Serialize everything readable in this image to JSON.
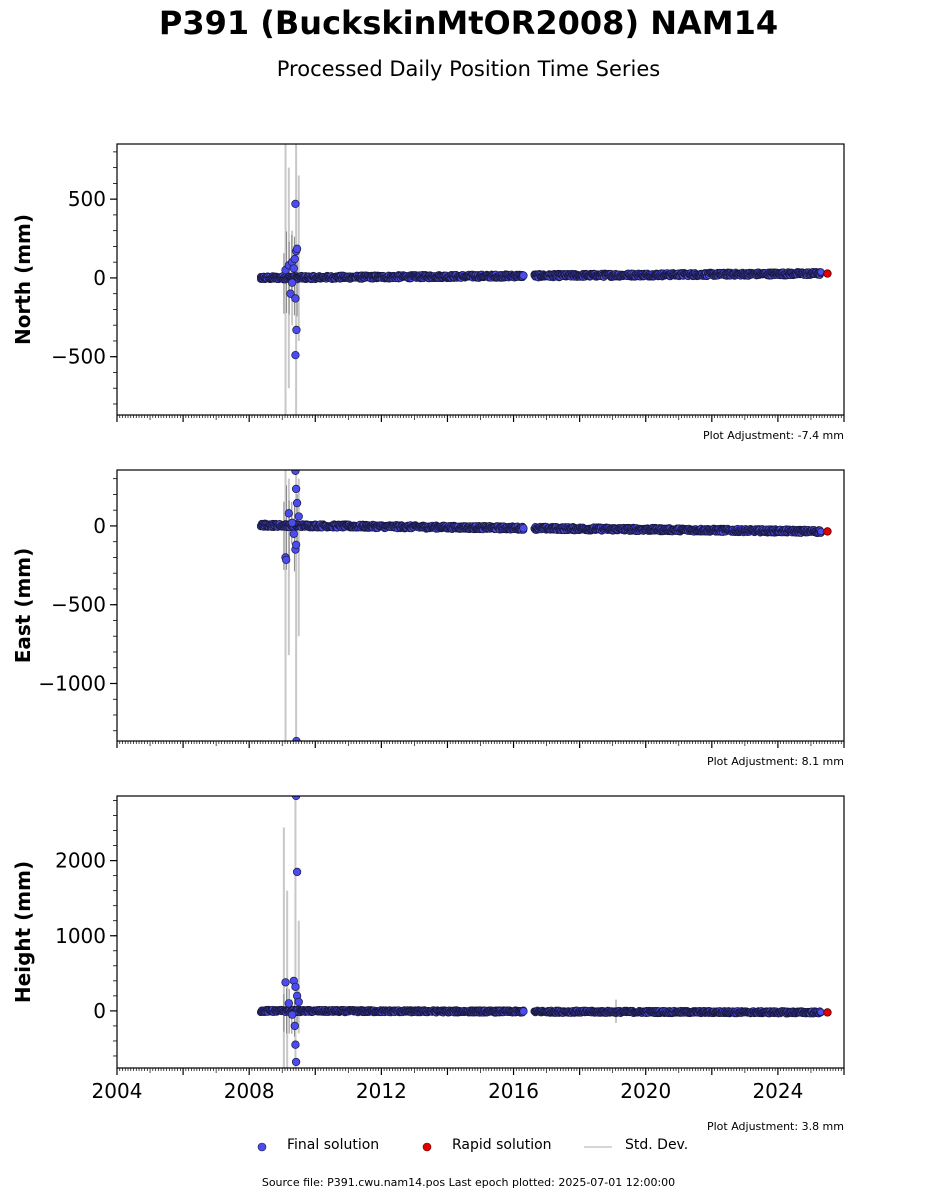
{
  "title": "P391 (BuckskinMtOR2008) NAM14",
  "subtitle": "Processed Daily Position Time Series",
  "source_line": "Source file: P391.cwu.nam14.pos  Last epoch plotted: 2025-07-01 12:00:00",
  "legend": {
    "final": "Final solution",
    "rapid": "Rapid solution",
    "std": "Std. Dev."
  },
  "colors": {
    "final": "#4b4bef",
    "final_edge": "#1a1a40",
    "rapid": "#e00000",
    "std": "#c8c8c8",
    "axis": "#000000"
  },
  "chart_data": [
    {
      "type": "scatter",
      "panel": "north",
      "ylabel": "North (mm)",
      "xlim": [
        2004,
        2026
      ],
      "ylim": [
        -870,
        850
      ],
      "yticks": [
        500,
        0,
        -500
      ],
      "ytick_labels": [
        "500",
        "0",
        "−500"
      ],
      "adjustment": "Plot Adjustment: -7.4 mm",
      "start": 2008.35,
      "gap": [
        2016.3,
        2016.6
      ],
      "end": 2025.3,
      "trend_start": 0,
      "trend_end": 28,
      "spread": 12,
      "final_outliers": [
        [
          2009.1,
          50
        ],
        [
          2009.2,
          80
        ],
        [
          2009.25,
          -100
        ],
        [
          2009.3,
          100
        ],
        [
          2009.4,
          470
        ],
        [
          2009.42,
          170
        ],
        [
          2009.45,
          185
        ],
        [
          2009.4,
          -130
        ],
        [
          2009.43,
          -330
        ],
        [
          2009.4,
          -490
        ],
        [
          2009.35,
          60
        ],
        [
          2009.3,
          -30
        ],
        [
          2009.38,
          120
        ]
      ],
      "final_marker_points": [
        [
          2016.3,
          15
        ]
      ],
      "rapid_points": [
        [
          2025.5,
          28
        ]
      ],
      "std_bars": [
        [
          2009.1,
          -870,
          850
        ],
        [
          2009.2,
          -700,
          700
        ],
        [
          2009.42,
          -870,
          850
        ],
        [
          2009.5,
          -400,
          650
        ],
        [
          2009.3,
          -300,
          300
        ]
      ]
    },
    {
      "type": "scatter",
      "panel": "east",
      "ylabel": "East (mm)",
      "xlim": [
        2004,
        2026
      ],
      "ylim": [
        -1365,
        355
      ],
      "yticks": [
        0,
        -500,
        -1000
      ],
      "ytick_labels": [
        "0",
        "−500",
        "−1000"
      ],
      "adjustment": "Plot Adjustment: 8.1 mm",
      "start": 2008.35,
      "gap": [
        2016.3,
        2016.6
      ],
      "end": 2025.3,
      "trend_start": 5,
      "trend_end": -35,
      "spread": 12,
      "final_outliers": [
        [
          2009.1,
          -200
        ],
        [
          2009.12,
          -215
        ],
        [
          2009.2,
          80
        ],
        [
          2009.3,
          20
        ],
        [
          2009.4,
          350
        ],
        [
          2009.42,
          235
        ],
        [
          2009.45,
          145
        ],
        [
          2009.4,
          -150
        ],
        [
          2009.42,
          -120
        ],
        [
          2009.5,
          60
        ],
        [
          2009.43,
          -1365
        ],
        [
          2009.35,
          -50
        ]
      ],
      "final_marker_points": [
        [
          2016.3,
          -15
        ]
      ],
      "rapid_points": [
        [
          2025.5,
          -35
        ]
      ],
      "std_bars": [
        [
          2009.1,
          -1365,
          355
        ],
        [
          2009.2,
          -820,
          300
        ],
        [
          2009.42,
          -1365,
          355
        ],
        [
          2009.5,
          -700,
          300
        ]
      ]
    },
    {
      "type": "scatter",
      "panel": "height",
      "ylabel": "Height (mm)",
      "xlim": [
        2004,
        2026
      ],
      "ylim": [
        -760,
        2860
      ],
      "yticks": [
        2000,
        1000,
        0
      ],
      "ytick_labels": [
        "2000",
        "1000",
        "0"
      ],
      "xticks": [
        2004,
        2008,
        2012,
        2016,
        2020,
        2024
      ],
      "xtick_labels": [
        "2004",
        "2008",
        "2012",
        "2016",
        "2020",
        "2024"
      ],
      "adjustment": "Plot Adjustment: 3.8 mm",
      "start": 2008.35,
      "gap": [
        2016.3,
        2016.6
      ],
      "end": 2025.3,
      "trend_start": 0,
      "trend_end": -20,
      "spread": 18,
      "final_outliers": [
        [
          2009.1,
          380
        ],
        [
          2009.2,
          100
        ],
        [
          2009.35,
          400
        ],
        [
          2009.4,
          320
        ],
        [
          2009.42,
          2860
        ],
        [
          2009.45,
          1850
        ],
        [
          2009.45,
          200
        ],
        [
          2009.4,
          -450
        ],
        [
          2009.42,
          -680
        ],
        [
          2009.3,
          -50
        ],
        [
          2009.5,
          120
        ],
        [
          2009.38,
          -200
        ]
      ],
      "final_marker_points": [
        [
          2016.3,
          -5
        ]
      ],
      "rapid_points": [
        [
          2025.5,
          -20
        ]
      ],
      "std_bars": [
        [
          2009.05,
          -760,
          2440
        ],
        [
          2009.15,
          -760,
          1600
        ],
        [
          2009.4,
          -760,
          2860
        ],
        [
          2009.5,
          -300,
          1200
        ],
        [
          2019.1,
          -160,
          150
        ]
      ]
    }
  ]
}
